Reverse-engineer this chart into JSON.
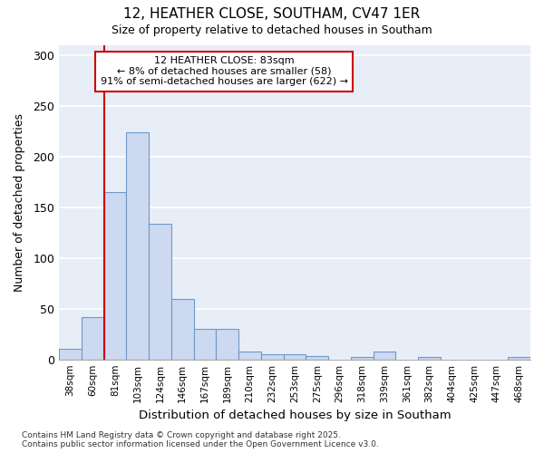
{
  "title1": "12, HEATHER CLOSE, SOUTHAM, CV47 1ER",
  "title2": "Size of property relative to detached houses in Southam",
  "xlabel": "Distribution of detached houses by size in Southam",
  "ylabel": "Number of detached properties",
  "bins": [
    "38sqm",
    "60sqm",
    "81sqm",
    "103sqm",
    "124sqm",
    "146sqm",
    "167sqm",
    "189sqm",
    "210sqm",
    "232sqm",
    "253sqm",
    "275sqm",
    "296sqm",
    "318sqm",
    "339sqm",
    "361sqm",
    "382sqm",
    "404sqm",
    "425sqm",
    "447sqm",
    "468sqm"
  ],
  "values": [
    10,
    42,
    165,
    224,
    134,
    60,
    30,
    30,
    8,
    5,
    5,
    3,
    0,
    2,
    8,
    0,
    2,
    0,
    0,
    0,
    2
  ],
  "bar_color": "#ccd9f0",
  "bar_edge_color": "#7098c8",
  "redline_bin_index": 2,
  "annotation_line1": "12 HEATHER CLOSE: 83sqm",
  "annotation_line2": "← 8% of detached houses are smaller (58)",
  "annotation_line3": "91% of semi-detached houses are larger (622) →",
  "annotation_box_color": "#ffffff",
  "annotation_box_edge": "#cc0000",
  "vline_color": "#cc0000",
  "footer1": "Contains HM Land Registry data © Crown copyright and database right 2025.",
  "footer2": "Contains public sector information licensed under the Open Government Licence v3.0.",
  "ylim": [
    0,
    310
  ],
  "yticks": [
    0,
    50,
    100,
    150,
    200,
    250,
    300
  ],
  "background_color": "#ffffff",
  "plot_bg_color": "#e8eef8",
  "grid_color": "#ffffff"
}
